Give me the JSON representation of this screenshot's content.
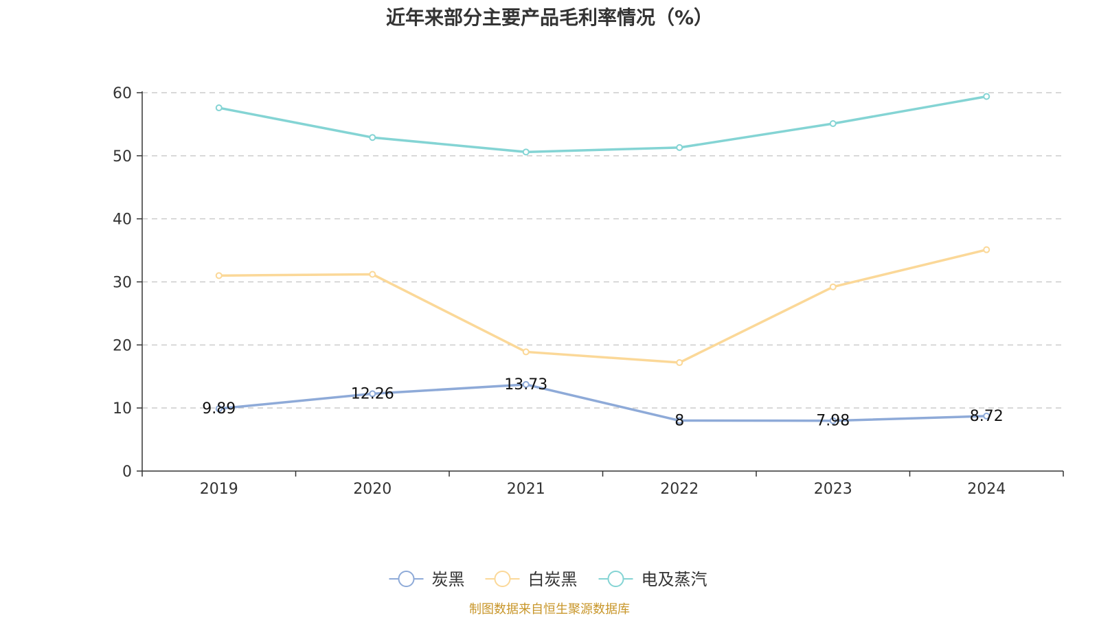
{
  "chart_data": {
    "type": "line",
    "title": "近年来部分主要产品毛利率情况（%）",
    "categories": [
      "2019",
      "2020",
      "2021",
      "2022",
      "2023",
      "2024"
    ],
    "ylim": [
      0,
      60
    ],
    "yticks": [
      0,
      10,
      20,
      30,
      40,
      50,
      60
    ],
    "grid": true,
    "legend_position": "bottom",
    "series": [
      {
        "name": "炭黑",
        "color": "#8eaad8",
        "values": [
          9.89,
          12.26,
          13.73,
          8,
          7.98,
          8.72
        ],
        "labels": [
          "9.89",
          "12.26",
          "13.73",
          "8",
          "7.98",
          "8.72"
        ]
      },
      {
        "name": "白炭黑",
        "color": "#fbd898",
        "values": [
          31.0,
          31.2,
          18.9,
          17.2,
          29.2,
          35.1
        ],
        "labels": null
      },
      {
        "name": "电及蒸汽",
        "color": "#84d4d4",
        "values": [
          57.6,
          52.9,
          50.6,
          51.3,
          55.1,
          59.4
        ],
        "labels": null
      }
    ]
  },
  "source": "制图数据来自恒生聚源数据库"
}
